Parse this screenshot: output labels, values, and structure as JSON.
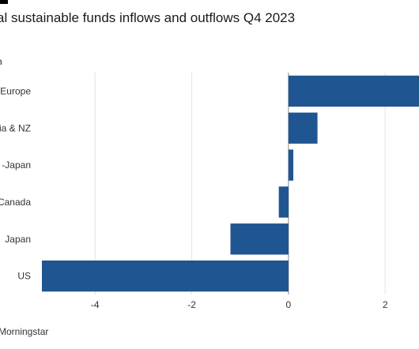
{
  "header": {
    "title": "al sustainable funds inflows and outflows Q4 2023",
    "unit_label": "n"
  },
  "footer": {
    "source": "Morningstar"
  },
  "chart_data": {
    "type": "bar",
    "orientation": "horizontal",
    "title": "al sustainable funds inflows and outflows Q4 2023",
    "categories": [
      "Europe",
      "ia & NZ",
      "-Japan",
      "Canada",
      "Japan",
      "US"
    ],
    "values": [
      2.7,
      0.6,
      0.1,
      -0.2,
      -1.2,
      -5.1
    ],
    "xlim": [
      -5.1,
      2.7
    ],
    "xticks": [
      -4,
      -2,
      0,
      2
    ],
    "xtick_labels": [
      "-4",
      "-2",
      "0",
      "2"
    ],
    "grid": true,
    "bar_color": "#1f5591",
    "grid_color": "#e3e3e3",
    "zero_line_color": "#888888"
  }
}
